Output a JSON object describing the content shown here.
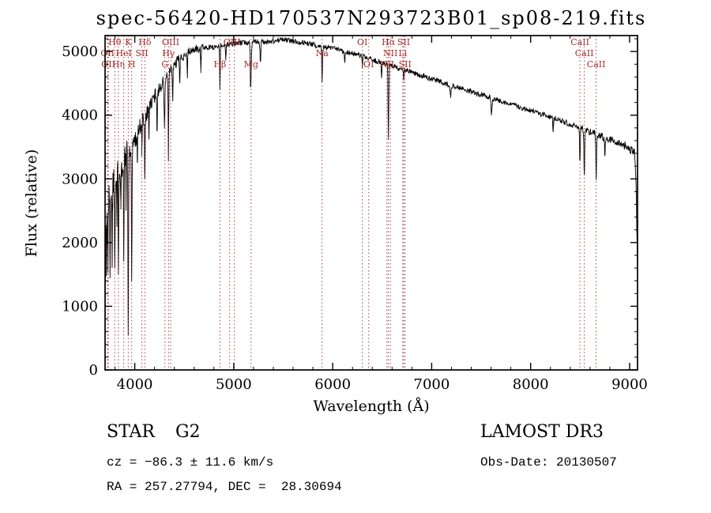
{
  "title": "spec-56420-HD170537N293723B01_sp08-219.fits",
  "footer": {
    "class_label": "STAR",
    "subclass": "G2",
    "survey": "LAMOST DR3",
    "cz": "cz = −86.3 ± 11.6 km/s",
    "obs_date": "Obs-Date: 20130507",
    "ra_dec": "RA = 257.27794, DEC =  28.30694"
  },
  "chart_data": {
    "type": "line",
    "series_name": "flux",
    "title": "spec-56420-HD170537N293723B01_sp08-219.fits",
    "xlabel": "Wavelength (Å)",
    "ylabel": "Flux (relative)",
    "xlim": [
      3700,
      9080
    ],
    "ylim": [
      0,
      5250
    ],
    "x_ticks": [
      4000,
      5000,
      6000,
      7000,
      8000,
      9000
    ],
    "y_ticks": [
      0,
      1000,
      2000,
      3000,
      4000,
      5000
    ],
    "x_minor_step": 200,
    "y_minor_step": 200,
    "grid": false,
    "line_color": "#000000",
    "marker_color": "#a52a2a",
    "continuum": [
      [
        3700,
        2300
      ],
      [
        3740,
        2700
      ],
      [
        3780,
        2950
      ],
      [
        3820,
        3080
      ],
      [
        3860,
        3200
      ],
      [
        3900,
        3350
      ],
      [
        3940,
        3450
      ],
      [
        3980,
        3550
      ],
      [
        4020,
        3700
      ],
      [
        4060,
        3850
      ],
      [
        4100,
        3980
      ],
      [
        4150,
        4130
      ],
      [
        4200,
        4300
      ],
      [
        4250,
        4430
      ],
      [
        4300,
        4550
      ],
      [
        4350,
        4670
      ],
      [
        4400,
        4790
      ],
      [
        4450,
        4880
      ],
      [
        4500,
        4950
      ],
      [
        4600,
        5030
      ],
      [
        4700,
        5060
      ],
      [
        4800,
        5070
      ],
      [
        4900,
        5100
      ],
      [
        5000,
        5120
      ],
      [
        5100,
        5140
      ],
      [
        5200,
        5150
      ],
      [
        5300,
        5150
      ],
      [
        5400,
        5160
      ],
      [
        5500,
        5190
      ],
      [
        5600,
        5160
      ],
      [
        5700,
        5140
      ],
      [
        5800,
        5110
      ],
      [
        5900,
        5070
      ],
      [
        6000,
        5050
      ],
      [
        6100,
        5010
      ],
      [
        6200,
        4970
      ],
      [
        6300,
        4920
      ],
      [
        6400,
        4870
      ],
      [
        6500,
        4820
      ],
      [
        6600,
        4770
      ],
      [
        6700,
        4720
      ],
      [
        6800,
        4670
      ],
      [
        6900,
        4620
      ],
      [
        7000,
        4570
      ],
      [
        7100,
        4520
      ],
      [
        7200,
        4470
      ],
      [
        7300,
        4420
      ],
      [
        7400,
        4370
      ],
      [
        7500,
        4320
      ],
      [
        7600,
        4270
      ],
      [
        7700,
        4220
      ],
      [
        7800,
        4170
      ],
      [
        7900,
        4120
      ],
      [
        8000,
        4070
      ],
      [
        8100,
        4020
      ],
      [
        8200,
        3970
      ],
      [
        8300,
        3920
      ],
      [
        8400,
        3860
      ],
      [
        8500,
        3800
      ],
      [
        8600,
        3740
      ],
      [
        8700,
        3680
      ],
      [
        8800,
        3620
      ],
      [
        8900,
        3560
      ],
      [
        8960,
        3520
      ],
      [
        9000,
        3480
      ],
      [
        9030,
        3450
      ],
      [
        9050,
        3430
      ],
      [
        9065,
        3000
      ],
      [
        9080,
        1500
      ]
    ],
    "absorption_features": [
      [
        3712,
        900,
        4
      ],
      [
        3727,
        900,
        4
      ],
      [
        3750,
        1050,
        4
      ],
      [
        3771,
        1100,
        4
      ],
      [
        3798,
        1350,
        4
      ],
      [
        3820,
        800,
        3
      ],
      [
        3835,
        1450,
        4
      ],
      [
        3860,
        700,
        3
      ],
      [
        3889,
        1600,
        4
      ],
      [
        3912,
        800,
        3
      ],
      [
        3934,
        2700,
        5
      ],
      [
        3969,
        1950,
        5
      ],
      [
        4026,
        500,
        3
      ],
      [
        4072,
        500,
        3
      ],
      [
        4102,
        1050,
        4
      ],
      [
        4144,
        420,
        3
      ],
      [
        4226,
        650,
        4
      ],
      [
        4300,
        750,
        6
      ],
      [
        4340,
        1400,
        4
      ],
      [
        4383,
        550,
        4
      ],
      [
        4455,
        380,
        4
      ],
      [
        4531,
        350,
        4
      ],
      [
        4668,
        330,
        4
      ],
      [
        4861,
        680,
        4
      ],
      [
        4920,
        240,
        4
      ],
      [
        5169,
        480,
        4
      ],
      [
        5175,
        520,
        6
      ],
      [
        5270,
        330,
        5
      ],
      [
        5893,
        520,
        5
      ],
      [
        6122,
        200,
        4
      ],
      [
        6300,
        160,
        4
      ],
      [
        6494,
        240,
        4
      ],
      [
        6563,
        1150,
        5
      ],
      [
        6717,
        160,
        4
      ],
      [
        7190,
        180,
        6
      ],
      [
        7605,
        250,
        7
      ],
      [
        8227,
        220,
        5
      ],
      [
        8498,
        560,
        5
      ],
      [
        8542,
        740,
        5
      ],
      [
        8662,
        680,
        5
      ],
      [
        8750,
        280,
        4
      ]
    ],
    "noise": {
      "blue_base": 55,
      "blue_amp": 360,
      "blue_scale": 320,
      "mid_amp": 45,
      "red_amp": 35
    },
    "dashed_lines": [
      3725,
      3733,
      3798,
      3835,
      3889,
      3934,
      3969,
      4072,
      4102,
      4305,
      4341,
      4363,
      4861,
      4959,
      5007,
      5175,
      5893,
      6300,
      6364,
      6548,
      6563,
      6583,
      6708,
      6717,
      6731,
      8498,
      8542,
      8662
    ],
    "line_markers": [
      {
        "wl": 3798,
        "label": "Hθ",
        "row": 0
      },
      {
        "wl": 3934,
        "label": "K",
        "row": 0
      },
      {
        "wl": 4102,
        "label": "Hδ",
        "row": 0
      },
      {
        "wl": 4363,
        "label": "OIII",
        "row": 0
      },
      {
        "wl": 4983,
        "label": "OIII",
        "row": 0
      },
      {
        "wl": 6300,
        "label": "OI",
        "row": 0
      },
      {
        "wl": 6563,
        "label": "Hα",
        "row": 0
      },
      {
        "wl": 6717,
        "label": "SII",
        "row": 0
      },
      {
        "wl": 8498,
        "label": "CaII",
        "row": 0
      },
      {
        "wl": 3725,
        "label": "OII",
        "row": 1
      },
      {
        "wl": 3889,
        "label": "HeI",
        "row": 1
      },
      {
        "wl": 4072,
        "label": "SII",
        "row": 1
      },
      {
        "wl": 4341,
        "label": "Hγ",
        "row": 1
      },
      {
        "wl": 5893,
        "label": "Na",
        "row": 1
      },
      {
        "wl": 6583,
        "label": "NII",
        "row": 1
      },
      {
        "wl": 6708,
        "label": "Li",
        "row": 1
      },
      {
        "wl": 8542,
        "label": "CaII",
        "row": 1
      },
      {
        "wl": 3733,
        "label": "OII",
        "row": 2
      },
      {
        "wl": 3835,
        "label": "Hη",
        "row": 2
      },
      {
        "wl": 3969,
        "label": "H",
        "row": 2
      },
      {
        "wl": 4305,
        "label": "G",
        "row": 2
      },
      {
        "wl": 4861,
        "label": "Hβ",
        "row": 2
      },
      {
        "wl": 5175,
        "label": "Mg",
        "row": 2
      },
      {
        "wl": 6364,
        "label": "OI",
        "row": 2
      },
      {
        "wl": 6548,
        "label": "NII",
        "row": 2
      },
      {
        "wl": 6731,
        "label": "SII",
        "row": 2
      },
      {
        "wl": 8662,
        "label": "CaII",
        "row": 2
      }
    ]
  }
}
